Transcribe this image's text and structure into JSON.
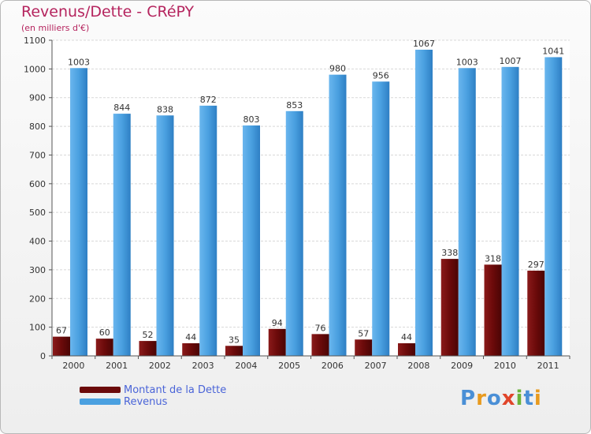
{
  "header": {
    "title": "Revenus/Dette - CRéPY",
    "subtitle": "(en milliers d'€)"
  },
  "legend": {
    "debt_label": "Montant de la Dette",
    "revenue_label": "Revenus"
  },
  "logo": {
    "text": "Proxiti"
  },
  "colors": {
    "debt": "#6b0a0a",
    "revenue": "#4aa0e0",
    "title": "#b5245e",
    "legend_text": "#4a64d8"
  },
  "chart_data": {
    "type": "bar",
    "categories": [
      "2000",
      "2001",
      "2002",
      "2003",
      "2004",
      "2005",
      "2006",
      "2007",
      "2008",
      "2009",
      "2010",
      "2011"
    ],
    "series": [
      {
        "name": "Montant de la Dette",
        "values": [
          67,
          60,
          52,
          44,
          35,
          94,
          76,
          57,
          44,
          338,
          318,
          297
        ]
      },
      {
        "name": "Revenus",
        "values": [
          1003,
          844,
          838,
          872,
          803,
          853,
          980,
          956,
          1067,
          1003,
          1007,
          1041
        ]
      }
    ],
    "title": "Revenus/Dette - CRéPY",
    "ylabel": "(en milliers d'€)",
    "ylim": [
      0,
      1100
    ],
    "yticks": [
      0,
      100,
      200,
      300,
      400,
      500,
      600,
      700,
      800,
      900,
      1000,
      1100
    ],
    "grid": true,
    "legend_position": "bottom-left"
  }
}
